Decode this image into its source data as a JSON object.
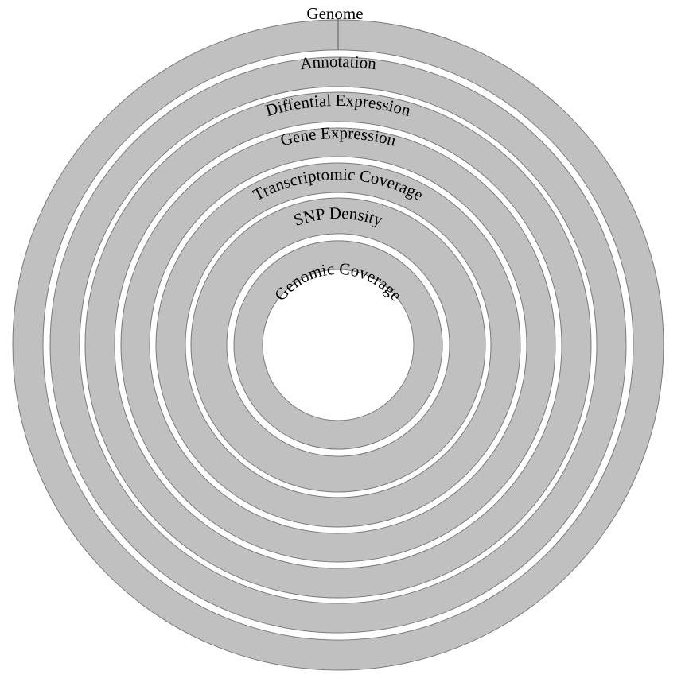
{
  "colors": {
    "ring_fill": "#c0c0c0",
    "ring_stroke": "#7a7a7a",
    "label": "#000000",
    "background": "#ffffff"
  },
  "tracks": [
    {
      "id": "genome",
      "label": "Genome"
    },
    {
      "id": "annotation",
      "label": "Annotation"
    },
    {
      "id": "differential-expression",
      "label": "Diffential Expression"
    },
    {
      "id": "gene-expression",
      "label": "Gene Expression"
    },
    {
      "id": "transcriptomic-coverage",
      "label": "Transcriptomic Coverage"
    },
    {
      "id": "snp-density",
      "label": "SNP Density"
    },
    {
      "id": "genomic-coverage",
      "label": "Genomic Coverage"
    }
  ]
}
